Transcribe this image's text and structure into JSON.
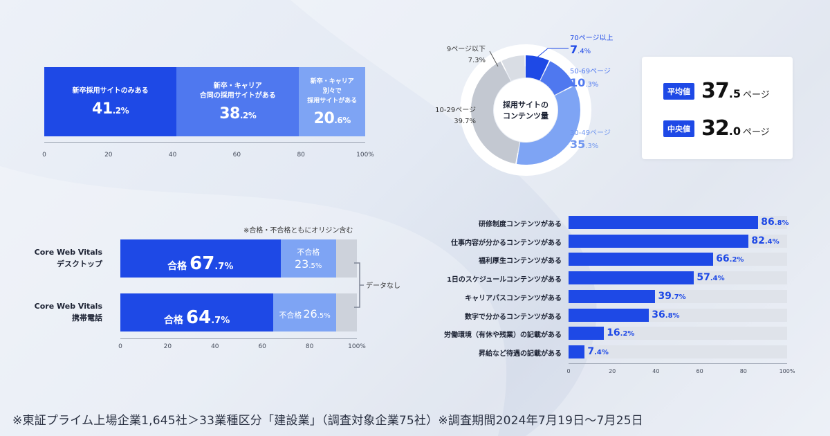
{
  "colors": {
    "primary": "#1e49e6",
    "secondary": "#4f78ef",
    "tertiary": "#7ea4f4",
    "gray": "#d3d7de",
    "light_gray": "#dfe3ea"
  },
  "chart_data": [
    {
      "type": "bar",
      "orientation": "horizontal-stacked",
      "categories": [
        "新卒採用サイトのみある",
        "新卒・キャリア\n合同の採用サイトがある",
        "新卒・キャリア\n別々で\n採用サイトがある"
      ],
      "values": [
        41.2,
        38.2,
        20.6
      ],
      "value_labels": [
        {
          "int": "41",
          "dec": ".2%"
        },
        {
          "int": "38",
          "dec": ".2%"
        },
        {
          "int": "20",
          "dec": ".6%"
        }
      ],
      "xticks": [
        "0",
        "20",
        "40",
        "60",
        "80",
        "100%"
      ],
      "xlim": [
        0,
        100
      ]
    },
    {
      "type": "pie",
      "title": "採用サイトの\nコンテンツ量",
      "slices": [
        {
          "name": "70ページ以上",
          "value": 7.4,
          "int": "7",
          "dec": ".4%"
        },
        {
          "name": "50-69ページ",
          "value": 10.3,
          "int": "10",
          "dec": ".3%"
        },
        {
          "name": "30-49ページ",
          "value": 35.3,
          "int": "35",
          "dec": ".3%"
        },
        {
          "name": "10-29ページ",
          "value": 39.7,
          "int": "39.7",
          "dec": "%"
        },
        {
          "name": "9ページ以下",
          "value": 7.3,
          "int": "7.3",
          "dec": "%"
        }
      ],
      "stats": [
        {
          "label": "平均値",
          "int": "37",
          "dec": ".5",
          "unit": "ページ"
        },
        {
          "label": "中央値",
          "int": "32",
          "dec": ".0",
          "unit": "ページ"
        }
      ]
    },
    {
      "type": "bar",
      "orientation": "horizontal-stacked",
      "note": "※合格・不合格ともにオリジン含む",
      "categories": [
        "Core Web Vitals\nデスクトップ",
        "Core Web Vitals\n携帯電話"
      ],
      "series": [
        {
          "name": "合格",
          "values": [
            67.7,
            64.7
          ]
        },
        {
          "name": "不合格",
          "values": [
            23.5,
            26.5
          ]
        },
        {
          "name": "データなし",
          "values": [
            8.8,
            8.8
          ]
        }
      ],
      "labels": {
        "pass": "合格",
        "fail": "不合格",
        "nodata": "データなし",
        "row0_pass_int": "67",
        "row0_pass_dec": ".7%",
        "row0_fail_int": "23",
        "row0_fail_dec": ".5%",
        "row1_pass_int": "64",
        "row1_pass_dec": ".7%",
        "row1_fail_int": "26",
        "row1_fail_dec": ".5%"
      },
      "xticks": [
        "0",
        "20",
        "40",
        "60",
        "80",
        "100%"
      ],
      "xlim": [
        0,
        100
      ]
    },
    {
      "type": "bar",
      "orientation": "horizontal",
      "categories": [
        "研修制度コンテンツがある",
        "仕事内容が分かるコンテンツがある",
        "福利厚生コンテンツがある",
        "1日のスケジュールコンテンツがある",
        "キャリアパスコンテンツがある",
        "数字で分かるコンテンツがある",
        "労働環境（有休や残業）の記載がある",
        "昇給など待遇の記載がある"
      ],
      "values": [
        86.8,
        82.4,
        66.2,
        57.4,
        39.7,
        36.8,
        16.2,
        7.4
      ],
      "value_labels": [
        {
          "int": "86",
          "dec": ".8%"
        },
        {
          "int": "82",
          "dec": ".4%"
        },
        {
          "int": "66",
          "dec": ".2%"
        },
        {
          "int": "57",
          "dec": ".4%"
        },
        {
          "int": "39",
          "dec": ".7%"
        },
        {
          "int": "36",
          "dec": ".8%"
        },
        {
          "int": "16",
          "dec": ".2%"
        },
        {
          "int": "7",
          "dec": ".4%"
        }
      ],
      "xticks": [
        "0",
        "20",
        "40",
        "60",
        "80",
        "100%"
      ],
      "xlim": [
        0,
        100
      ]
    }
  ],
  "footnote": "※東証プライム上場企業1,645社＞33業種区分「建設業」（調査対象企業75社）※調査期間2024年7月19日〜7月25日"
}
